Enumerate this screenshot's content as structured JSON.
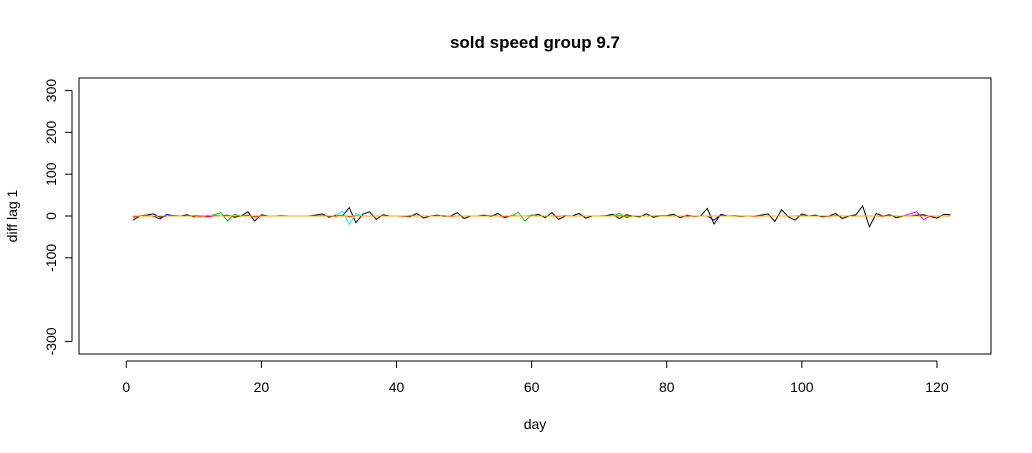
{
  "chart_data": {
    "type": "line",
    "title": "sold speed group 9.7",
    "xlabel": "day",
    "ylabel": "diff lag 1",
    "xlim": [
      -7,
      128
    ],
    "ylim": [
      -330,
      330
    ],
    "x_ticks": [
      0,
      20,
      40,
      60,
      80,
      100,
      120
    ],
    "y_ticks": [
      -300,
      -100,
      0,
      100,
      200,
      300
    ],
    "x_tick_labels": [
      "0",
      "20",
      "40",
      "60",
      "80",
      "100",
      "120"
    ],
    "y_tick_labels": [
      "-300",
      "-100",
      "0",
      "100",
      "200",
      "300"
    ],
    "grid": false,
    "legend": "none",
    "x": [
      1,
      2,
      3,
      4,
      5,
      6,
      7,
      8,
      9,
      10,
      11,
      12,
      13,
      14,
      15,
      16,
      17,
      18,
      19,
      20,
      21,
      22,
      23,
      24,
      25,
      26,
      27,
      28,
      29,
      30,
      31,
      32,
      33,
      34,
      35,
      36,
      37,
      38,
      39,
      40,
      41,
      42,
      43,
      44,
      45,
      46,
      47,
      48,
      49,
      50,
      51,
      52,
      53,
      54,
      55,
      56,
      57,
      58,
      59,
      60,
      61,
      62,
      63,
      64,
      65,
      66,
      67,
      68,
      69,
      70,
      71,
      72,
      73,
      74,
      75,
      76,
      77,
      78,
      79,
      80,
      81,
      82,
      83,
      84,
      85,
      86,
      87,
      88,
      89,
      90,
      91,
      92,
      93,
      94,
      95,
      96,
      97,
      98,
      99,
      100,
      101,
      102,
      103,
      104,
      105,
      106,
      107,
      108,
      109,
      110,
      111,
      112,
      113,
      114,
      115,
      116,
      117,
      118,
      119,
      120,
      121,
      122
    ],
    "series": [
      {
        "color": "#000000",
        "values": [
          -10,
          0,
          2,
          5,
          -3,
          0,
          1,
          0,
          3,
          -2,
          0,
          0,
          1,
          0,
          2,
          -3,
          0,
          10,
          -12,
          3,
          0,
          0,
          1,
          0,
          0,
          0,
          0,
          2,
          5,
          -3,
          2,
          0,
          20,
          -16,
          4,
          10,
          -8,
          3,
          0,
          0,
          0,
          -2,
          6,
          -5,
          0,
          2,
          -1,
          0,
          8,
          -6,
          0,
          0,
          2,
          -1,
          6,
          -4,
          1,
          0,
          0,
          0,
          4,
          -4,
          8,
          -8,
          0,
          0,
          6,
          -5,
          0,
          0,
          1,
          4,
          -6,
          3,
          0,
          -2,
          5,
          -3,
          0,
          1,
          4,
          -4,
          2,
          -1,
          0,
          18,
          -19,
          4,
          0,
          0,
          -1,
          0,
          0,
          2,
          5,
          -13,
          15,
          -2,
          -10,
          5,
          0,
          2,
          -2,
          0,
          6,
          -6,
          0,
          3,
          24,
          -26,
          6,
          0,
          3,
          -4,
          0,
          0,
          2,
          3,
          -1,
          -5,
          4,
          3
        ]
      },
      {
        "color": "#ff0000",
        "values": [
          -3,
          0,
          2,
          -1,
          0,
          0,
          1,
          0,
          0,
          1,
          0,
          -2,
          0,
          0,
          1,
          0,
          0,
          2,
          -2,
          0,
          0,
          0,
          0,
          0,
          0,
          0,
          0,
          0,
          1,
          0,
          -1,
          2,
          -2,
          1,
          0,
          0,
          0,
          0,
          0,
          0,
          -1,
          1,
          0,
          0,
          0,
          0,
          1,
          -1,
          0,
          0,
          0,
          0,
          0,
          1,
          0,
          -1,
          0,
          0,
          0,
          1,
          0,
          0,
          0,
          -1,
          1,
          0,
          0,
          0,
          0,
          0,
          0,
          0,
          1,
          -1,
          0,
          0,
          0,
          0,
          1,
          0,
          0,
          0,
          -1,
          0,
          0,
          0,
          0,
          0,
          0,
          1,
          0,
          0,
          -1,
          0,
          0,
          0,
          0,
          0,
          0,
          1,
          0,
          0,
          0,
          -1,
          1,
          0,
          0,
          0,
          0,
          0,
          0,
          -1,
          1,
          0,
          0,
          0,
          0,
          0,
          0,
          0,
          0,
          0
        ]
      },
      {
        "color": "#00cc00",
        "values": [
          0,
          0,
          0,
          0,
          0,
          0,
          0,
          0,
          0,
          0,
          0,
          0,
          3,
          8,
          -12,
          4,
          0,
          0,
          0,
          0,
          0,
          0,
          0,
          0,
          0,
          0,
          0,
          0,
          0,
          0,
          0,
          0,
          0,
          0,
          0,
          0,
          0,
          0,
          0,
          0,
          0,
          0,
          0,
          0,
          0,
          0,
          0,
          0,
          0,
          0,
          0,
          0,
          0,
          0,
          0,
          0,
          0,
          9,
          -12,
          3,
          0,
          0,
          0,
          0,
          0,
          0,
          0,
          0,
          0,
          0,
          0,
          0,
          6,
          -4,
          0,
          0,
          0,
          0,
          0,
          0,
          0,
          0,
          0,
          0,
          0,
          0,
          0,
          0,
          0,
          0,
          0,
          0,
          0,
          0,
          0,
          0,
          0,
          0,
          0,
          0,
          0,
          0,
          0,
          0,
          0,
          0,
          0,
          0,
          0,
          0,
          0,
          0,
          0,
          0,
          0,
          0,
          0,
          0,
          0,
          0,
          0,
          0
        ]
      },
      {
        "color": "#0000ff",
        "values": [
          0,
          0,
          0,
          0,
          -7,
          4,
          0,
          0,
          0,
          0,
          0,
          0,
          0,
          0,
          0,
          0,
          0,
          0,
          0,
          0,
          0,
          0,
          0,
          0,
          0,
          0,
          0,
          0,
          0,
          0,
          0,
          0,
          0,
          0,
          0,
          0,
          0,
          0,
          0,
          0,
          0,
          0,
          0,
          0,
          0,
          0,
          0,
          0,
          0,
          0,
          0,
          0,
          0,
          0,
          0,
          0,
          0,
          0,
          0,
          0,
          0,
          0,
          0,
          0,
          0,
          0,
          0,
          0,
          0,
          0,
          0,
          0,
          0,
          0,
          0,
          0,
          0,
          0,
          0,
          0,
          0,
          0,
          0,
          0,
          0,
          0,
          -10,
          3,
          0,
          0,
          0,
          0,
          0,
          0,
          0,
          0,
          0,
          0,
          0,
          0,
          0,
          0,
          0,
          0,
          0,
          0,
          0,
          0,
          0,
          0,
          0,
          0,
          0,
          0,
          0,
          0,
          0,
          0,
          0,
          0,
          0,
          0
        ]
      },
      {
        "color": "#00ffff",
        "values": [
          0,
          0,
          0,
          0,
          0,
          0,
          0,
          0,
          0,
          0,
          0,
          0,
          0,
          0,
          0,
          0,
          0,
          0,
          0,
          0,
          0,
          0,
          0,
          0,
          0,
          0,
          0,
          0,
          0,
          0,
          0,
          12,
          -20,
          6,
          0,
          0,
          0,
          0,
          0,
          0,
          0,
          0,
          0,
          0,
          0,
          0,
          0,
          0,
          0,
          0,
          0,
          0,
          0,
          0,
          0,
          0,
          0,
          0,
          0,
          0,
          0,
          0,
          0,
          0,
          0,
          0,
          0,
          0,
          0,
          0,
          0,
          0,
          0,
          0,
          0,
          0,
          0,
          0,
          0,
          0,
          0,
          0,
          0,
          0,
          0,
          0,
          0,
          0,
          0,
          0,
          0,
          0,
          0,
          0,
          0,
          0,
          0,
          0,
          0,
          0,
          0,
          0,
          0,
          0,
          0,
          0,
          0,
          0,
          0,
          0,
          0,
          0,
          0,
          0,
          0,
          0,
          0,
          0,
          0,
          0,
          0,
          0
        ]
      },
      {
        "color": "#ff00ff",
        "values": [
          0,
          0,
          0,
          0,
          0,
          0,
          0,
          0,
          0,
          0,
          0,
          0,
          0,
          0,
          0,
          0,
          0,
          0,
          0,
          0,
          0,
          0,
          0,
          0,
          0,
          0,
          0,
          0,
          0,
          0,
          0,
          0,
          0,
          0,
          0,
          0,
          0,
          0,
          0,
          0,
          0,
          0,
          0,
          0,
          0,
          0,
          0,
          0,
          0,
          0,
          0,
          0,
          0,
          0,
          0,
          0,
          0,
          0,
          0,
          0,
          0,
          0,
          0,
          0,
          0,
          0,
          0,
          0,
          0,
          0,
          0,
          0,
          0,
          0,
          0,
          0,
          0,
          0,
          0,
          0,
          0,
          0,
          0,
          0,
          0,
          0,
          0,
          0,
          0,
          0,
          0,
          0,
          0,
          0,
          0,
          0,
          0,
          0,
          0,
          0,
          0,
          0,
          0,
          0,
          0,
          0,
          0,
          0,
          0,
          0,
          0,
          0,
          0,
          0,
          0,
          5,
          10,
          -9,
          0,
          0,
          0,
          0
        ]
      },
      {
        "color": "#ffa500",
        "values": [
          0,
          0,
          0,
          0,
          0,
          0,
          0,
          0,
          0,
          0,
          -3,
          2,
          0,
          0,
          0,
          0,
          0,
          0,
          0,
          0,
          0,
          0,
          0,
          0,
          0,
          0,
          0,
          0,
          0,
          0,
          0,
          0,
          0,
          0,
          0,
          0,
          0,
          0,
          0,
          0,
          0,
          0,
          0,
          0,
          0,
          0,
          0,
          0,
          0,
          0,
          0,
          0,
          0,
          0,
          0,
          0,
          0,
          0,
          0,
          0,
          0,
          0,
          0,
          0,
          0,
          0,
          0,
          0,
          0,
          0,
          0,
          0,
          0,
          0,
          0,
          0,
          0,
          0,
          0,
          0,
          0,
          0,
          0,
          0,
          0,
          0,
          0,
          0,
          0,
          0,
          0,
          0,
          0,
          0,
          0,
          0,
          0,
          0,
          0,
          0,
          0,
          0,
          0,
          0,
          0,
          0,
          0,
          0,
          0,
          0,
          0,
          0,
          0,
          0,
          0,
          0,
          0,
          0,
          0,
          0,
          0,
          0
        ]
      }
    ]
  }
}
